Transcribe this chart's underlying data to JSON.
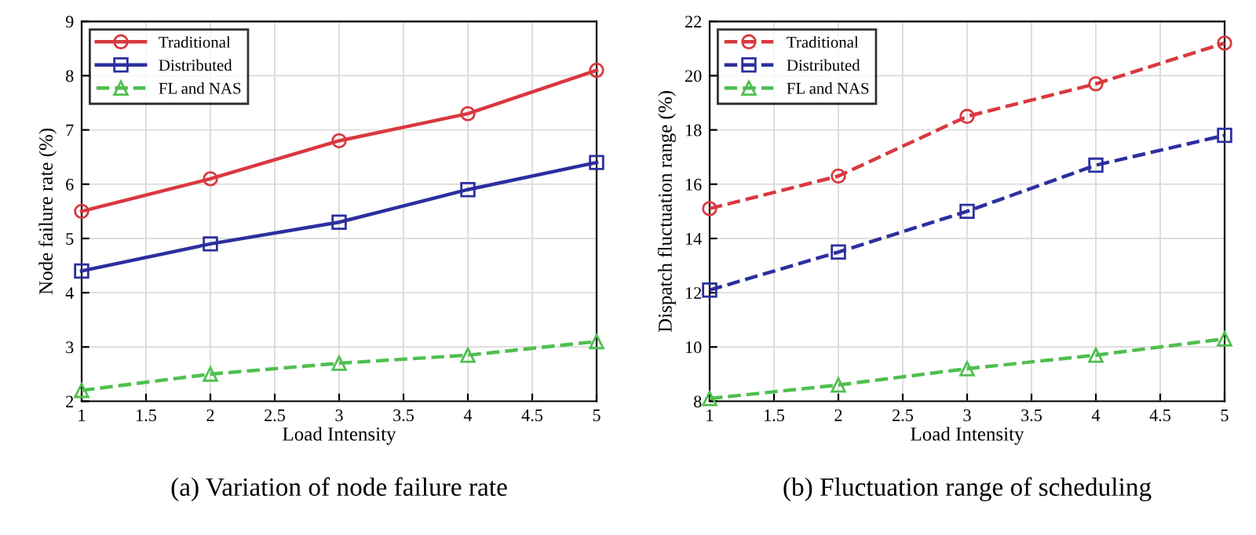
{
  "chart_data": [
    {
      "type": "line",
      "title": "(a) Variation of node failure rate",
      "xlabel": "Load Intensity",
      "ylabel": "Node failure rate (%)",
      "x": [
        1,
        2,
        3,
        4,
        5
      ],
      "xlim": [
        1,
        5
      ],
      "xticks": [
        1,
        1.5,
        2,
        2.5,
        3,
        3.5,
        4,
        4.5,
        5
      ],
      "ylim": [
        2,
        9
      ],
      "yticks": [
        2,
        3,
        4,
        5,
        6,
        7,
        8,
        9
      ],
      "grid": true,
      "legend": "top left",
      "series": [
        {
          "name": "Traditional",
          "color": "#d9383f",
          "values": [
            5.5,
            6.1,
            6.8,
            7.3,
            8.1
          ],
          "marker": "circle",
          "line_style": "solid"
        },
        {
          "name": "Distributed",
          "color": "#2b2f9e",
          "values": [
            4.4,
            4.9,
            5.3,
            5.9,
            6.4
          ],
          "marker": "square",
          "line_style": "solid"
        },
        {
          "name": "FL and NAS",
          "color": "#4fbf4f",
          "values": [
            2.2,
            2.5,
            2.7,
            2.85,
            3.1
          ],
          "marker": "triangle",
          "line_style": "dashed"
        }
      ]
    },
    {
      "type": "line",
      "title": "(b) Fluctuation range of scheduling",
      "xlabel": "Load Intensity",
      "ylabel": "Dispatch fluctuation range (%)",
      "x": [
        1,
        2,
        3,
        4,
        5
      ],
      "xlim": [
        1,
        5
      ],
      "xticks": [
        1,
        1.5,
        2,
        2.5,
        3,
        3.5,
        4,
        4.5,
        5
      ],
      "ylim": [
        8,
        22
      ],
      "yticks": [
        8,
        10,
        12,
        14,
        16,
        18,
        20,
        22
      ],
      "grid": true,
      "legend": "top left",
      "series": [
        {
          "name": "Traditional",
          "color": "#d9383f",
          "values": [
            15.1,
            16.3,
            18.5,
            19.7,
            21.2
          ],
          "marker": "circle",
          "line_style": "dashed"
        },
        {
          "name": "Distributed",
          "color": "#2b2f9e",
          "values": [
            12.1,
            13.5,
            15.0,
            16.7,
            17.8
          ],
          "marker": "square",
          "line_style": "dashed"
        },
        {
          "name": "FL and NAS",
          "color": "#4fbf4f",
          "values": [
            8.1,
            8.6,
            9.2,
            9.7,
            10.3
          ],
          "marker": "triangle",
          "line_style": "dashed"
        }
      ]
    }
  ]
}
